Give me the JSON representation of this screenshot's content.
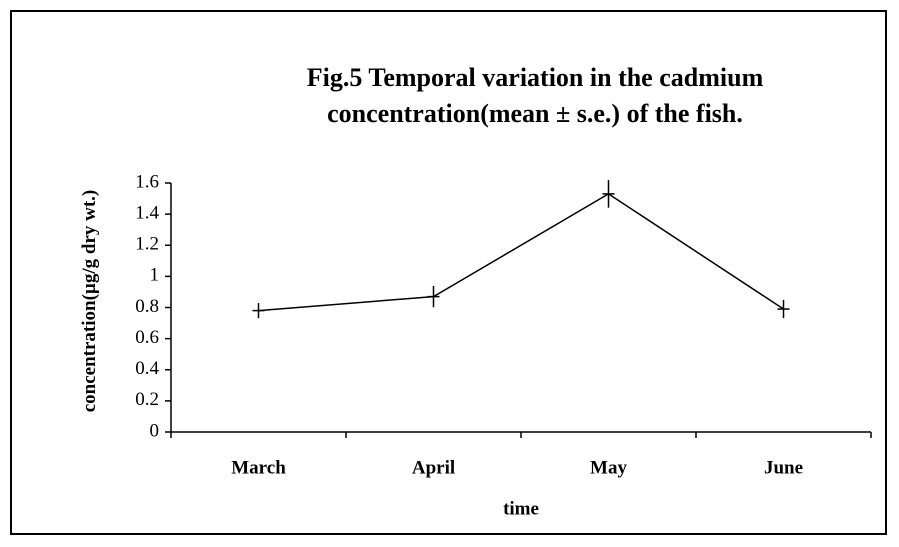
{
  "chart_data": {
    "type": "line",
    "title": "Fig.5  Temporal variation in the cadmium concentration(mean ± s.e.) of the fish.",
    "x_label": "time",
    "y_label": "concentration(µg/g dry wt.)",
    "categories": [
      "March",
      "April",
      "May",
      "June"
    ],
    "values": [
      0.78,
      0.87,
      1.53,
      0.79
    ],
    "errors": [
      0.01,
      0.03,
      0.05,
      0.02
    ],
    "color": "#000000",
    "ylim": [
      0,
      1.6
    ],
    "yticks": [
      0,
      0.2,
      0.4,
      0.6,
      0.8,
      1,
      1.2,
      1.4,
      1.6
    ]
  }
}
